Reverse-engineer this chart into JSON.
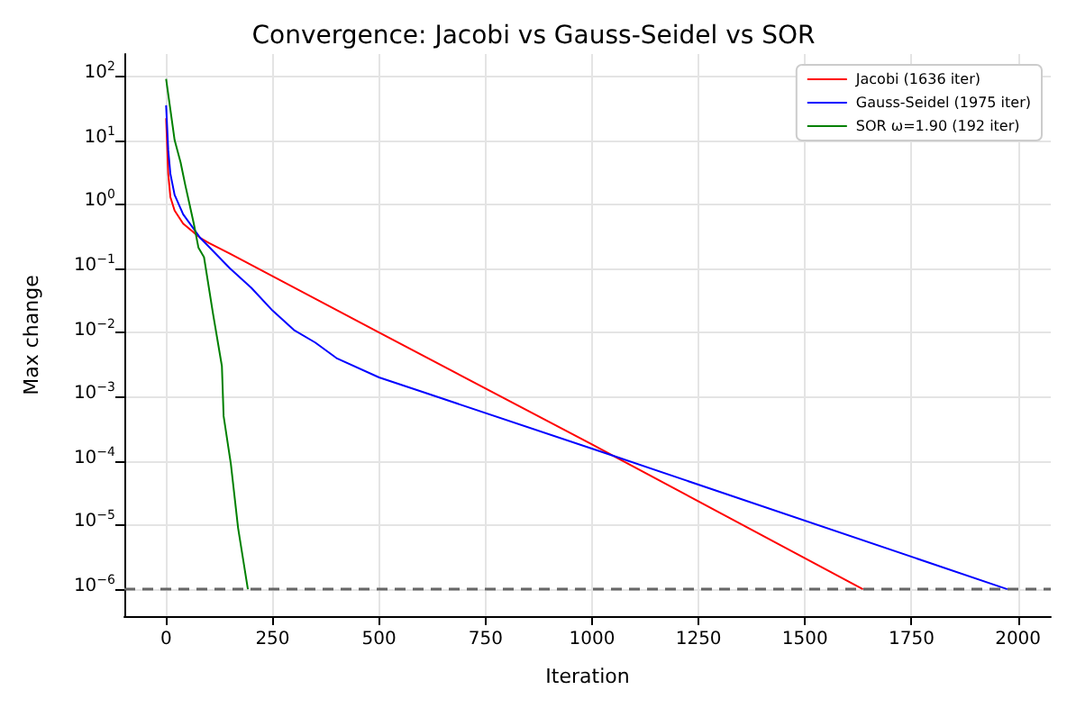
{
  "chart_data": {
    "type": "line",
    "title": "Convergence: Jacobi vs Gauss-Seidel vs SOR",
    "xlabel": "Iteration",
    "ylabel": "Max change",
    "log": "y",
    "grid": true,
    "legend": "top right",
    "marker": "none",
    "line_style": "solid",
    "xlim": [
      -98,
      2077
    ],
    "xticks": [
      0,
      250,
      500,
      750,
      1000,
      1250,
      1500,
      1750,
      2000
    ],
    "ylim": [
      3.8e-07,
      220
    ],
    "yticks": [
      {
        "value": 1e-06,
        "label": "10$^{−6}$"
      },
      {
        "value": 1e-05,
        "label": "10$^{−5}$"
      },
      {
        "value": 0.0001,
        "label": "10$^{−4}$"
      },
      {
        "value": 0.001,
        "label": "10$^{−3}$"
      },
      {
        "value": 0.01,
        "label": "10$^{−2}$"
      },
      {
        "value": 0.1,
        "label": "10$^{−1}$"
      },
      {
        "value": 1,
        "label": "10$^{0}$"
      },
      {
        "value": 10,
        "label": "10$^{1}$"
      },
      {
        "value": 100,
        "label": "10$^{2}$"
      }
    ],
    "series": [
      {
        "name": "Jacobi (1636 iter)",
        "color": "#ff0000",
        "x": [
          0,
          5,
          10,
          20,
          40,
          80,
          100,
          150,
          500,
          1000,
          1636
        ],
        "values": [
          22,
          3,
          1.3,
          0.8,
          0.5,
          0.3,
          0.25,
          0.17,
          0.01,
          0.00018,
          1e-06
        ]
      },
      {
        "name": "Gauss-Seidel (1975 iter)",
        "color": "#0000ff",
        "x": [
          0,
          5,
          10,
          20,
          40,
          80,
          150,
          200,
          250,
          300,
          350,
          400,
          500,
          600,
          1050,
          1975
        ],
        "values": [
          35,
          7,
          3,
          1.4,
          0.7,
          0.3,
          0.1,
          0.05,
          0.022,
          0.011,
          0.007,
          0.004,
          0.002,
          0.0012,
          0.00012,
          1e-06
        ]
      },
      {
        "name": "SOR ω=1.90 (192 iter)",
        "color": "#008000",
        "x": [
          0,
          10,
          20,
          34,
          45,
          55,
          65,
          76,
          89,
          110,
          131,
          135,
          152,
          169,
          192
        ],
        "values": [
          90,
          30,
          10,
          4.5,
          2,
          1,
          0.5,
          0.21,
          0.15,
          0.02,
          0.003,
          0.0005,
          9e-05,
          9e-06,
          1e-06
        ]
      }
    ],
    "ref_lines": [
      {
        "axis": "y",
        "value": 1e-06,
        "color": "#666666",
        "line_style": "dashed"
      }
    ]
  }
}
